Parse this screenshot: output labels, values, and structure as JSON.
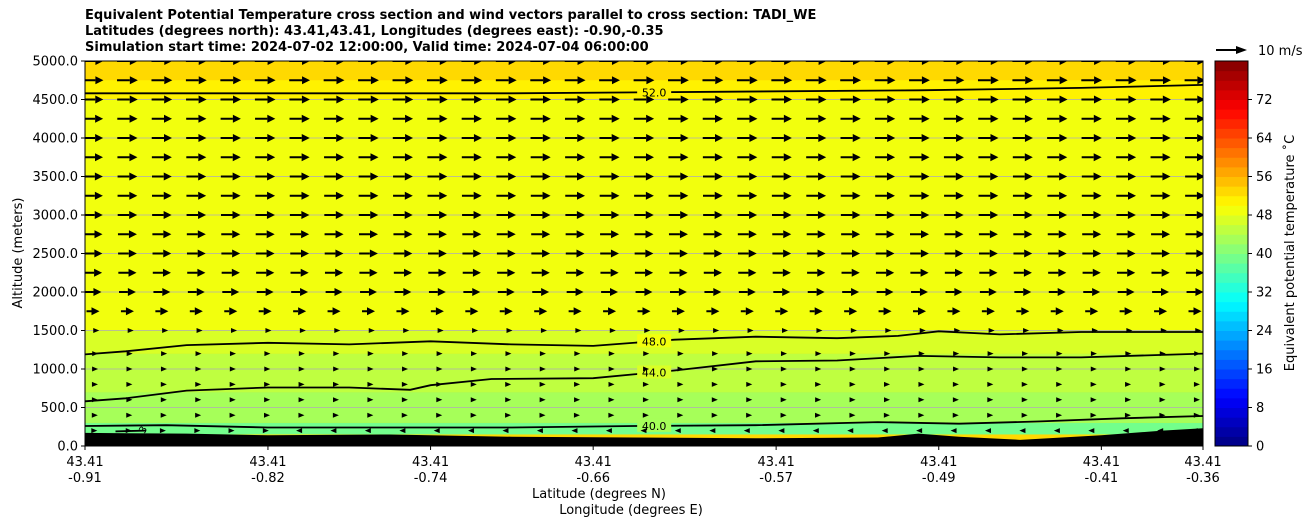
{
  "chart_data": {
    "type": "heatmap",
    "title_lines": [
      "Equivalent Potential Temperature cross section and wind vectors parallel to cross section: TADI_WE",
      "Latitudes (degrees north): 43.41,43.41, Longitudes (degrees east): -0.90,-0.35",
      "Simulation start time: 2024-07-02 12:00:00, Valid time: 2024-07-04 06:00:00"
    ],
    "ylabel": "Altitude (meters)",
    "xlabel_line1": "Latitude (degrees N)",
    "xlabel_line2": "Longitude (degrees E)",
    "ylim": [
      0,
      5000
    ],
    "xlim": [
      -0.91,
      -0.36
    ],
    "y_ticks": [
      "0.0",
      "500.0",
      "1000.0",
      "1500.0",
      "2000.0",
      "2500.0",
      "3000.0",
      "3500.0",
      "4000.0",
      "4500.0",
      "5000.0"
    ],
    "y_tick_values": [
      0,
      500,
      1000,
      1500,
      2000,
      2500,
      3000,
      3500,
      4000,
      4500,
      5000
    ],
    "x_ticks": [
      {
        "lon": -0.91,
        "lat_label": "43.41",
        "lon_label": "-0.91"
      },
      {
        "lon": -0.82,
        "lat_label": "43.41",
        "lon_label": "-0.82"
      },
      {
        "lon": -0.74,
        "lat_label": "43.41",
        "lon_label": "-0.74"
      },
      {
        "lon": -0.66,
        "lat_label": "43.41",
        "lon_label": "-0.66"
      },
      {
        "lon": -0.57,
        "lat_label": "43.41",
        "lon_label": "-0.57"
      },
      {
        "lon": -0.49,
        "lat_label": "43.41",
        "lon_label": "-0.49"
      },
      {
        "lon": -0.41,
        "lat_label": "43.41",
        "lon_label": "-0.41"
      },
      {
        "lon": -0.36,
        "lat_label": "43.41",
        "lon_label": "-0.36"
      }
    ],
    "grid": true,
    "colorbar": {
      "label": "Equivalent potential temperature ˚C",
      "min": 0,
      "max": 80,
      "ticks": [
        "0",
        "8",
        "16",
        "24",
        "32",
        "40",
        "48",
        "56",
        "64",
        "72"
      ],
      "tick_values": [
        0,
        8,
        16,
        24,
        32,
        40,
        48,
        56,
        64,
        72
      ],
      "colormap": "jet",
      "levels": 40
    },
    "quiver_key": {
      "label": "10 m/s",
      "value_ms": 10
    },
    "contours": [
      {
        "label": "52.0",
        "x": [
          -0.91,
          -0.8,
          -0.7,
          -0.6,
          -0.5,
          -0.42,
          -0.36
        ],
        "y": [
          4580,
          4580,
          4580,
          4600,
          4620,
          4650,
          4690
        ]
      },
      {
        "label": "48.0",
        "x": [
          -0.91,
          -0.89,
          -0.86,
          -0.82,
          -0.78,
          -0.74,
          -0.7,
          -0.66,
          -0.62,
          -0.58,
          -0.54,
          -0.51,
          -0.49,
          -0.46,
          -0.42,
          -0.36
        ],
        "y": [
          1190,
          1230,
          1310,
          1340,
          1320,
          1360,
          1320,
          1300,
          1380,
          1420,
          1400,
          1430,
          1490,
          1450,
          1480,
          1480
        ]
      },
      {
        "label": "44.0",
        "x": [
          -0.91,
          -0.89,
          -0.86,
          -0.82,
          -0.78,
          -0.75,
          -0.74,
          -0.71,
          -0.66,
          -0.62,
          -0.58,
          -0.54,
          -0.5,
          -0.46,
          -0.42,
          -0.36
        ],
        "y": [
          580,
          620,
          720,
          760,
          760,
          730,
          790,
          870,
          880,
          980,
          1100,
          1110,
          1170,
          1150,
          1150,
          1200
        ]
      },
      {
        "label": "40.0",
        "x": [
          -0.91,
          -0.87,
          -0.82,
          -0.76,
          -0.7,
          -0.64,
          -0.58,
          -0.52,
          -0.48,
          -0.44,
          -0.4,
          -0.36
        ],
        "y": [
          260,
          270,
          240,
          240,
          240,
          260,
          270,
          310,
          290,
          320,
          360,
          390
        ]
      }
    ],
    "small_contour_label": "36.0",
    "field_bands": [
      {
        "y": [
          4750,
          5000
        ],
        "value": 52.5
      },
      {
        "y": [
          4500,
          4750
        ],
        "value": 51
      },
      {
        "y": [
          1500,
          4500
        ],
        "value": 49.5
      },
      {
        "y": [
          1200,
          1500
        ],
        "value": 47
      },
      {
        "y": [
          700,
          1200
        ],
        "value": 45
      },
      {
        "y": [
          300,
          700
        ],
        "value": 43
      },
      {
        "y": [
          150,
          300
        ],
        "value": 39
      }
    ],
    "terrain_height_m": {
      "x": [
        -0.91,
        -0.86,
        -0.82,
        -0.76,
        -0.7,
        -0.64,
        -0.58,
        -0.52,
        -0.5,
        -0.48,
        -0.45,
        -0.41,
        -0.38,
        -0.36
      ],
      "y": [
        170,
        160,
        140,
        150,
        120,
        110,
        100,
        110,
        160,
        120,
        80,
        140,
        200,
        230
      ]
    },
    "wind_rows": [
      {
        "z": 200,
        "ms": [
          1,
          1,
          0.8,
          0.8,
          0.6,
          0.5,
          -0.4,
          -0.5,
          -0.5,
          -0.4,
          -0.5,
          -0.6,
          -0.6,
          -0.6,
          -0.5,
          -0.5,
          -0.4,
          -0.5,
          -0.4,
          -0.4,
          -0.3,
          -0.3,
          -0.3,
          -0.3,
          -0.3,
          -0.3,
          -0.3,
          -0.3,
          -0.3,
          -0.3,
          -0.3,
          -0.3,
          -0.3,
          -0.3,
          -0.3,
          -0.3,
          -0.3,
          -0.3,
          -0.3,
          -0.3,
          -0.3,
          -0.3,
          -0.3,
          -0.3,
          -0.3,
          -0.3
        ]
      },
      {
        "z": 400,
        "ms": 1.4
      },
      {
        "z": 600,
        "ms": 1.5
      },
      {
        "z": 800,
        "ms": 1.5
      },
      {
        "z": 1000,
        "ms": 1.6
      },
      {
        "z": 1200,
        "ms": 1.7
      },
      {
        "z": 1500,
        "ms": 2.5
      },
      {
        "z": 1750,
        "ms": 5
      },
      {
        "z": 2000,
        "ms": 6.5
      },
      {
        "z": 2250,
        "ms": 7
      },
      {
        "z": 2500,
        "ms": 7.2
      },
      {
        "z": 2750,
        "ms": 7.3
      },
      {
        "z": 3000,
        "ms": 7.5
      },
      {
        "z": 3250,
        "ms": 7.6
      },
      {
        "z": 3500,
        "ms": 7.6
      },
      {
        "z": 3750,
        "ms": 7.7
      },
      {
        "z": 4000,
        "ms": 7.8
      },
      {
        "z": 4250,
        "ms": 7.8
      },
      {
        "z": 4500,
        "ms": 7.9
      },
      {
        "z": 4750,
        "ms": 8
      },
      {
        "z": 5000,
        "ms": 8
      }
    ],
    "wind_columns": 33
  }
}
